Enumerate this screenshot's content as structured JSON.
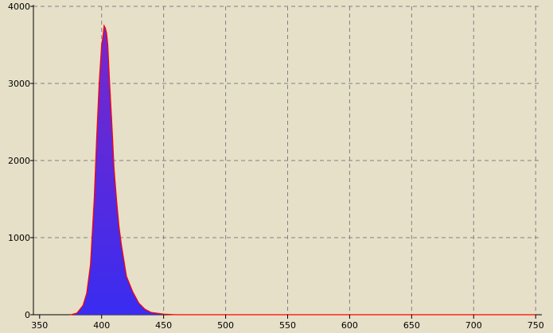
{
  "chart_data": {
    "type": "area",
    "title": "",
    "xlabel": "",
    "ylabel": "",
    "xlim": [
      345,
      755
    ],
    "ylim": [
      0,
      4000
    ],
    "x_ticks": [
      350,
      400,
      450,
      500,
      550,
      600,
      650,
      700,
      750
    ],
    "y_ticks": [
      0,
      1000,
      2000,
      3000,
      4000
    ],
    "grid": true,
    "legend": "none",
    "series": [
      {
        "x": [
          375,
          380,
          385,
          388,
          391,
          394,
          396,
          398,
          400,
          401,
          402,
          403,
          404,
          405,
          406,
          407,
          408,
          409,
          410,
          412,
          414,
          416,
          418,
          420,
          425,
          430,
          435,
          440,
          450,
          460,
          750
        ],
        "y": [
          0,
          20,
          120,
          280,
          650,
          1500,
          2300,
          3000,
          3500,
          3600,
          3750,
          3720,
          3650,
          3500,
          3150,
          2850,
          2550,
          2250,
          1900,
          1500,
          1150,
          900,
          700,
          500,
          300,
          150,
          70,
          30,
          8,
          0,
          0
        ],
        "colors": {
          "fill_top": "#7a28c8",
          "fill_bottom": "#3a2cf0",
          "outline": "#ff0000"
        }
      }
    ],
    "colors": {
      "background": "#e6e0c8",
      "grid": "#808080",
      "axis": "#000000"
    }
  }
}
